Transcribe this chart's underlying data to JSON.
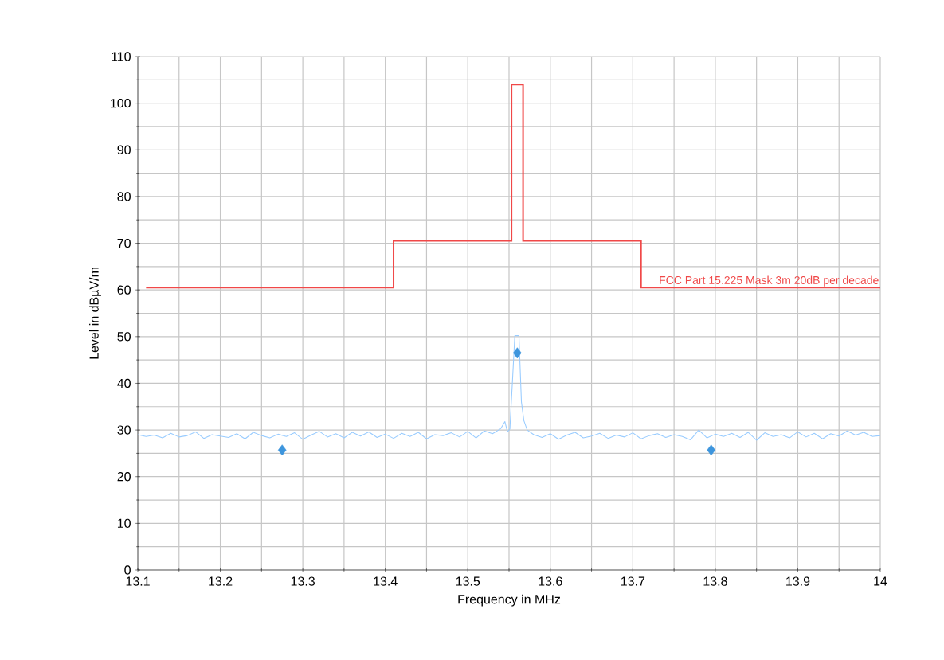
{
  "chart_data": {
    "type": "line",
    "xlabel": "Frequency in MHz",
    "ylabel": "Level in dBµV/m",
    "xlim": [
      13.1,
      14
    ],
    "ylim": [
      0,
      110
    ],
    "xticks": [
      13.1,
      13.2,
      13.3,
      13.4,
      13.5,
      13.6,
      13.7,
      13.8,
      13.9,
      14
    ],
    "yticks": [
      0,
      10,
      20,
      30,
      40,
      50,
      60,
      70,
      80,
      90,
      100,
      110
    ],
    "grid": true,
    "series": [
      {
        "type": "step",
        "name": "FCC Part 15.225 Mask 3m 20dB per decade",
        "color": "#f04848",
        "x": [
          13.11,
          13.41,
          13.553,
          13.567,
          13.71,
          14
        ],
        "values": [
          60.5,
          70.5,
          104,
          70.5,
          60.5,
          60.5
        ]
      },
      {
        "color": "#99ccff",
        "x": [
          13.1,
          13.11,
          13.12,
          13.13,
          13.14,
          13.15,
          13.16,
          13.17,
          13.18,
          13.19,
          13.2,
          13.21,
          13.22,
          13.23,
          13.24,
          13.25,
          13.26,
          13.27,
          13.28,
          13.29,
          13.3,
          13.31,
          13.32,
          13.33,
          13.34,
          13.35,
          13.36,
          13.37,
          13.38,
          13.39,
          13.4,
          13.41,
          13.42,
          13.43,
          13.44,
          13.45,
          13.46,
          13.47,
          13.48,
          13.49,
          13.5,
          13.51,
          13.52,
          13.53,
          13.54,
          13.545,
          13.548,
          13.551,
          13.554,
          13.557,
          13.562,
          13.565,
          13.568,
          13.572,
          13.58,
          13.59,
          13.6,
          13.61,
          13.62,
          13.63,
          13.64,
          13.65,
          13.66,
          13.67,
          13.68,
          13.69,
          13.7,
          13.71,
          13.72,
          13.73,
          13.74,
          13.75,
          13.76,
          13.77,
          13.78,
          13.79,
          13.8,
          13.81,
          13.82,
          13.83,
          13.84,
          13.85,
          13.86,
          13.87,
          13.88,
          13.89,
          13.9,
          13.91,
          13.92,
          13.93,
          13.94,
          13.95,
          13.96,
          13.97,
          13.98,
          13.99,
          14
        ],
        "values": [
          29.0,
          28.6,
          28.9,
          28.3,
          29.3,
          28.5,
          28.8,
          29.6,
          28.2,
          29.0,
          28.7,
          28.4,
          29.2,
          28.1,
          29.5,
          28.8,
          28.3,
          29.1,
          28.6,
          29.4,
          28.0,
          28.9,
          29.7,
          28.5,
          29.2,
          28.3,
          29.5,
          28.7,
          29.6,
          28.4,
          29.1,
          28.2,
          29.3,
          28.6,
          29.5,
          28.1,
          29.0,
          28.8,
          29.4,
          28.5,
          29.7,
          28.3,
          29.8,
          29.2,
          30.3,
          31.8,
          29.6,
          30.2,
          40,
          50.2,
          50.2,
          36,
          32,
          30.0,
          29.0,
          28.4,
          29.2,
          28.0,
          28.9,
          29.5,
          28.3,
          28.7,
          29.3,
          28.2,
          28.9,
          28.5,
          29.4,
          28.1,
          28.8,
          29.2,
          28.4,
          29.0,
          28.6,
          27.9,
          30.0,
          28.3,
          29.1,
          28.6,
          29.3,
          28.4,
          29.5,
          27.8,
          29.4,
          28.6,
          29.0,
          28.3,
          29.6,
          28.5,
          29.3,
          28.1,
          29.2,
          28.7,
          29.8,
          28.9,
          29.5,
          28.6,
          28.8
        ]
      },
      {
        "type": "scatter",
        "marker": "diamond",
        "color": "#3d95dd",
        "x": [
          13.275,
          13.56,
          13.795
        ],
        "values": [
          25.7,
          46.5,
          25.7
        ]
      }
    ]
  }
}
